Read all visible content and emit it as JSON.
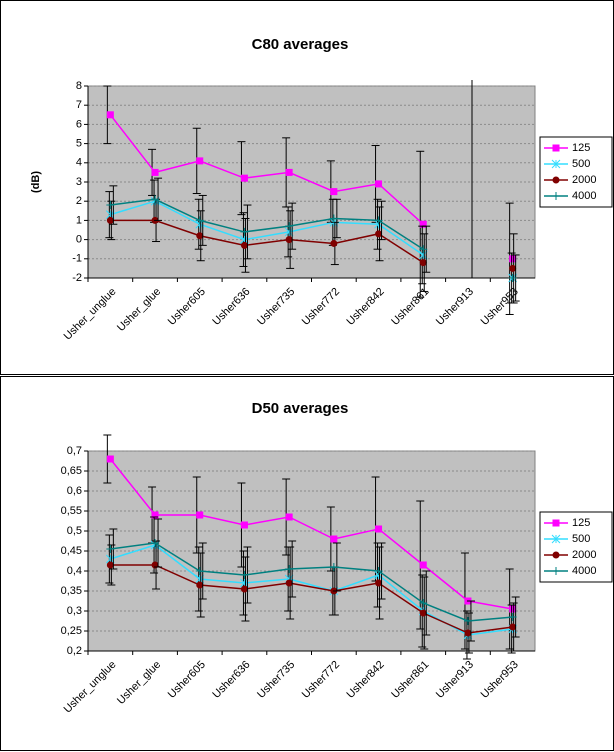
{
  "chart_data": [
    {
      "type": "line",
      "title": "C80 averages",
      "ylabel": "(dB)",
      "categories": [
        "Usher_unglue",
        "Usher_glue",
        "Usher605",
        "Usher636",
        "Usher735",
        "Usher772",
        "Usher842",
        "Usher861",
        "Usher913",
        "Usher953"
      ],
      "ylim": [
        -2,
        8
      ],
      "yticks": [
        -2,
        -1,
        0,
        1,
        2,
        3,
        4,
        5,
        6,
        7,
        8
      ],
      "grid": true,
      "legend": "right",
      "series": [
        {
          "name": "125",
          "color": "#ff00ff",
          "marker": "square",
          "values": [
            6.5,
            3.5,
            4.1,
            3.2,
            3.5,
            2.5,
            2.9,
            0.8,
            null,
            -1.0
          ],
          "errors": [
            1.5,
            1.2,
            1.7,
            1.9,
            1.8,
            1.6,
            2.0,
            3.8,
            null,
            2.9
          ]
        },
        {
          "name": "500",
          "color": "#33ddff",
          "marker": "x",
          "values": [
            1.3,
            2.0,
            0.8,
            0.0,
            0.4,
            0.9,
            0.8,
            -0.8,
            null,
            -2.0
          ],
          "errors": [
            1.2,
            1.1,
            1.3,
            1.4,
            1.3,
            1.2,
            1.3,
            1.5,
            null,
            1.3
          ]
        },
        {
          "name": "2000",
          "color": "#800000",
          "marker": "circle",
          "values": [
            1.0,
            1.0,
            0.2,
            -0.3,
            0.0,
            -0.2,
            0.3,
            -1.2,
            null,
            -1.5
          ],
          "errors": [
            1.0,
            1.1,
            1.3,
            1.4,
            1.5,
            1.1,
            1.4,
            1.5,
            null,
            1.8
          ]
        },
        {
          "name": "4000",
          "color": "#008080",
          "marker": "plus",
          "values": [
            1.8,
            2.1,
            1.0,
            0.4,
            0.7,
            1.1,
            1.0,
            -0.5,
            null,
            -2.0
          ],
          "errors": [
            1.0,
            1.1,
            1.3,
            1.4,
            1.2,
            1.0,
            1.0,
            1.2,
            null,
            1.2
          ]
        }
      ]
    },
    {
      "type": "line",
      "title": "D50 averages",
      "categories": [
        "Usher_unglue",
        "Usher_glue",
        "Usher605",
        "Usher636",
        "Usher735",
        "Usher772",
        "Usher842",
        "Usher861",
        "Usher913",
        "Usher953"
      ],
      "ylim": [
        0.2,
        0.7
      ],
      "yticks": [
        {
          "value": 0.2,
          "label": "0,2"
        },
        {
          "value": 0.25,
          "label": "0,25"
        },
        {
          "value": 0.3,
          "label": "0,3"
        },
        {
          "value": 0.35,
          "label": "0,35"
        },
        {
          "value": 0.4,
          "label": "0,4"
        },
        {
          "value": 0.45,
          "label": "0,45"
        },
        {
          "value": 0.5,
          "label": "0,5"
        },
        {
          "value": 0.55,
          "label": "0,55"
        },
        {
          "value": 0.6,
          "label": "0,6"
        },
        {
          "value": 0.65,
          "label": "0,65"
        },
        {
          "value": 0.7,
          "label": "0,7"
        }
      ],
      "grid": true,
      "legend": "right",
      "series": [
        {
          "name": "125",
          "color": "#ff00ff",
          "marker": "square",
          "values": [
            0.68,
            0.54,
            0.54,
            0.515,
            0.535,
            0.48,
            0.505,
            0.415,
            0.325,
            0.305
          ],
          "errors": [
            0.06,
            0.07,
            0.095,
            0.105,
            0.095,
            0.08,
            0.13,
            0.16,
            0.12,
            0.1
          ]
        },
        {
          "name": "500",
          "color": "#33ddff",
          "marker": "x",
          "values": [
            0.43,
            0.465,
            0.38,
            0.37,
            0.38,
            0.35,
            0.39,
            0.3,
            0.24,
            0.255
          ],
          "errors": [
            0.06,
            0.07,
            0.08,
            0.08,
            0.08,
            0.06,
            0.08,
            0.09,
            0.06,
            0.06
          ]
        },
        {
          "name": "2000",
          "color": "#800000",
          "marker": "circle",
          "values": [
            0.415,
            0.415,
            0.365,
            0.355,
            0.37,
            0.35,
            0.37,
            0.295,
            0.245,
            0.26
          ],
          "errors": [
            0.05,
            0.06,
            0.08,
            0.08,
            0.09,
            0.06,
            0.09,
            0.09,
            0.05,
            0.06
          ]
        },
        {
          "name": "4000",
          "color": "#008080",
          "marker": "plus",
          "values": [
            0.455,
            0.47,
            0.4,
            0.39,
            0.405,
            0.41,
            0.4,
            0.32,
            0.275,
            0.285
          ],
          "errors": [
            0.05,
            0.06,
            0.07,
            0.07,
            0.07,
            0.06,
            0.07,
            0.08,
            0.05,
            0.05
          ]
        }
      ]
    }
  ]
}
